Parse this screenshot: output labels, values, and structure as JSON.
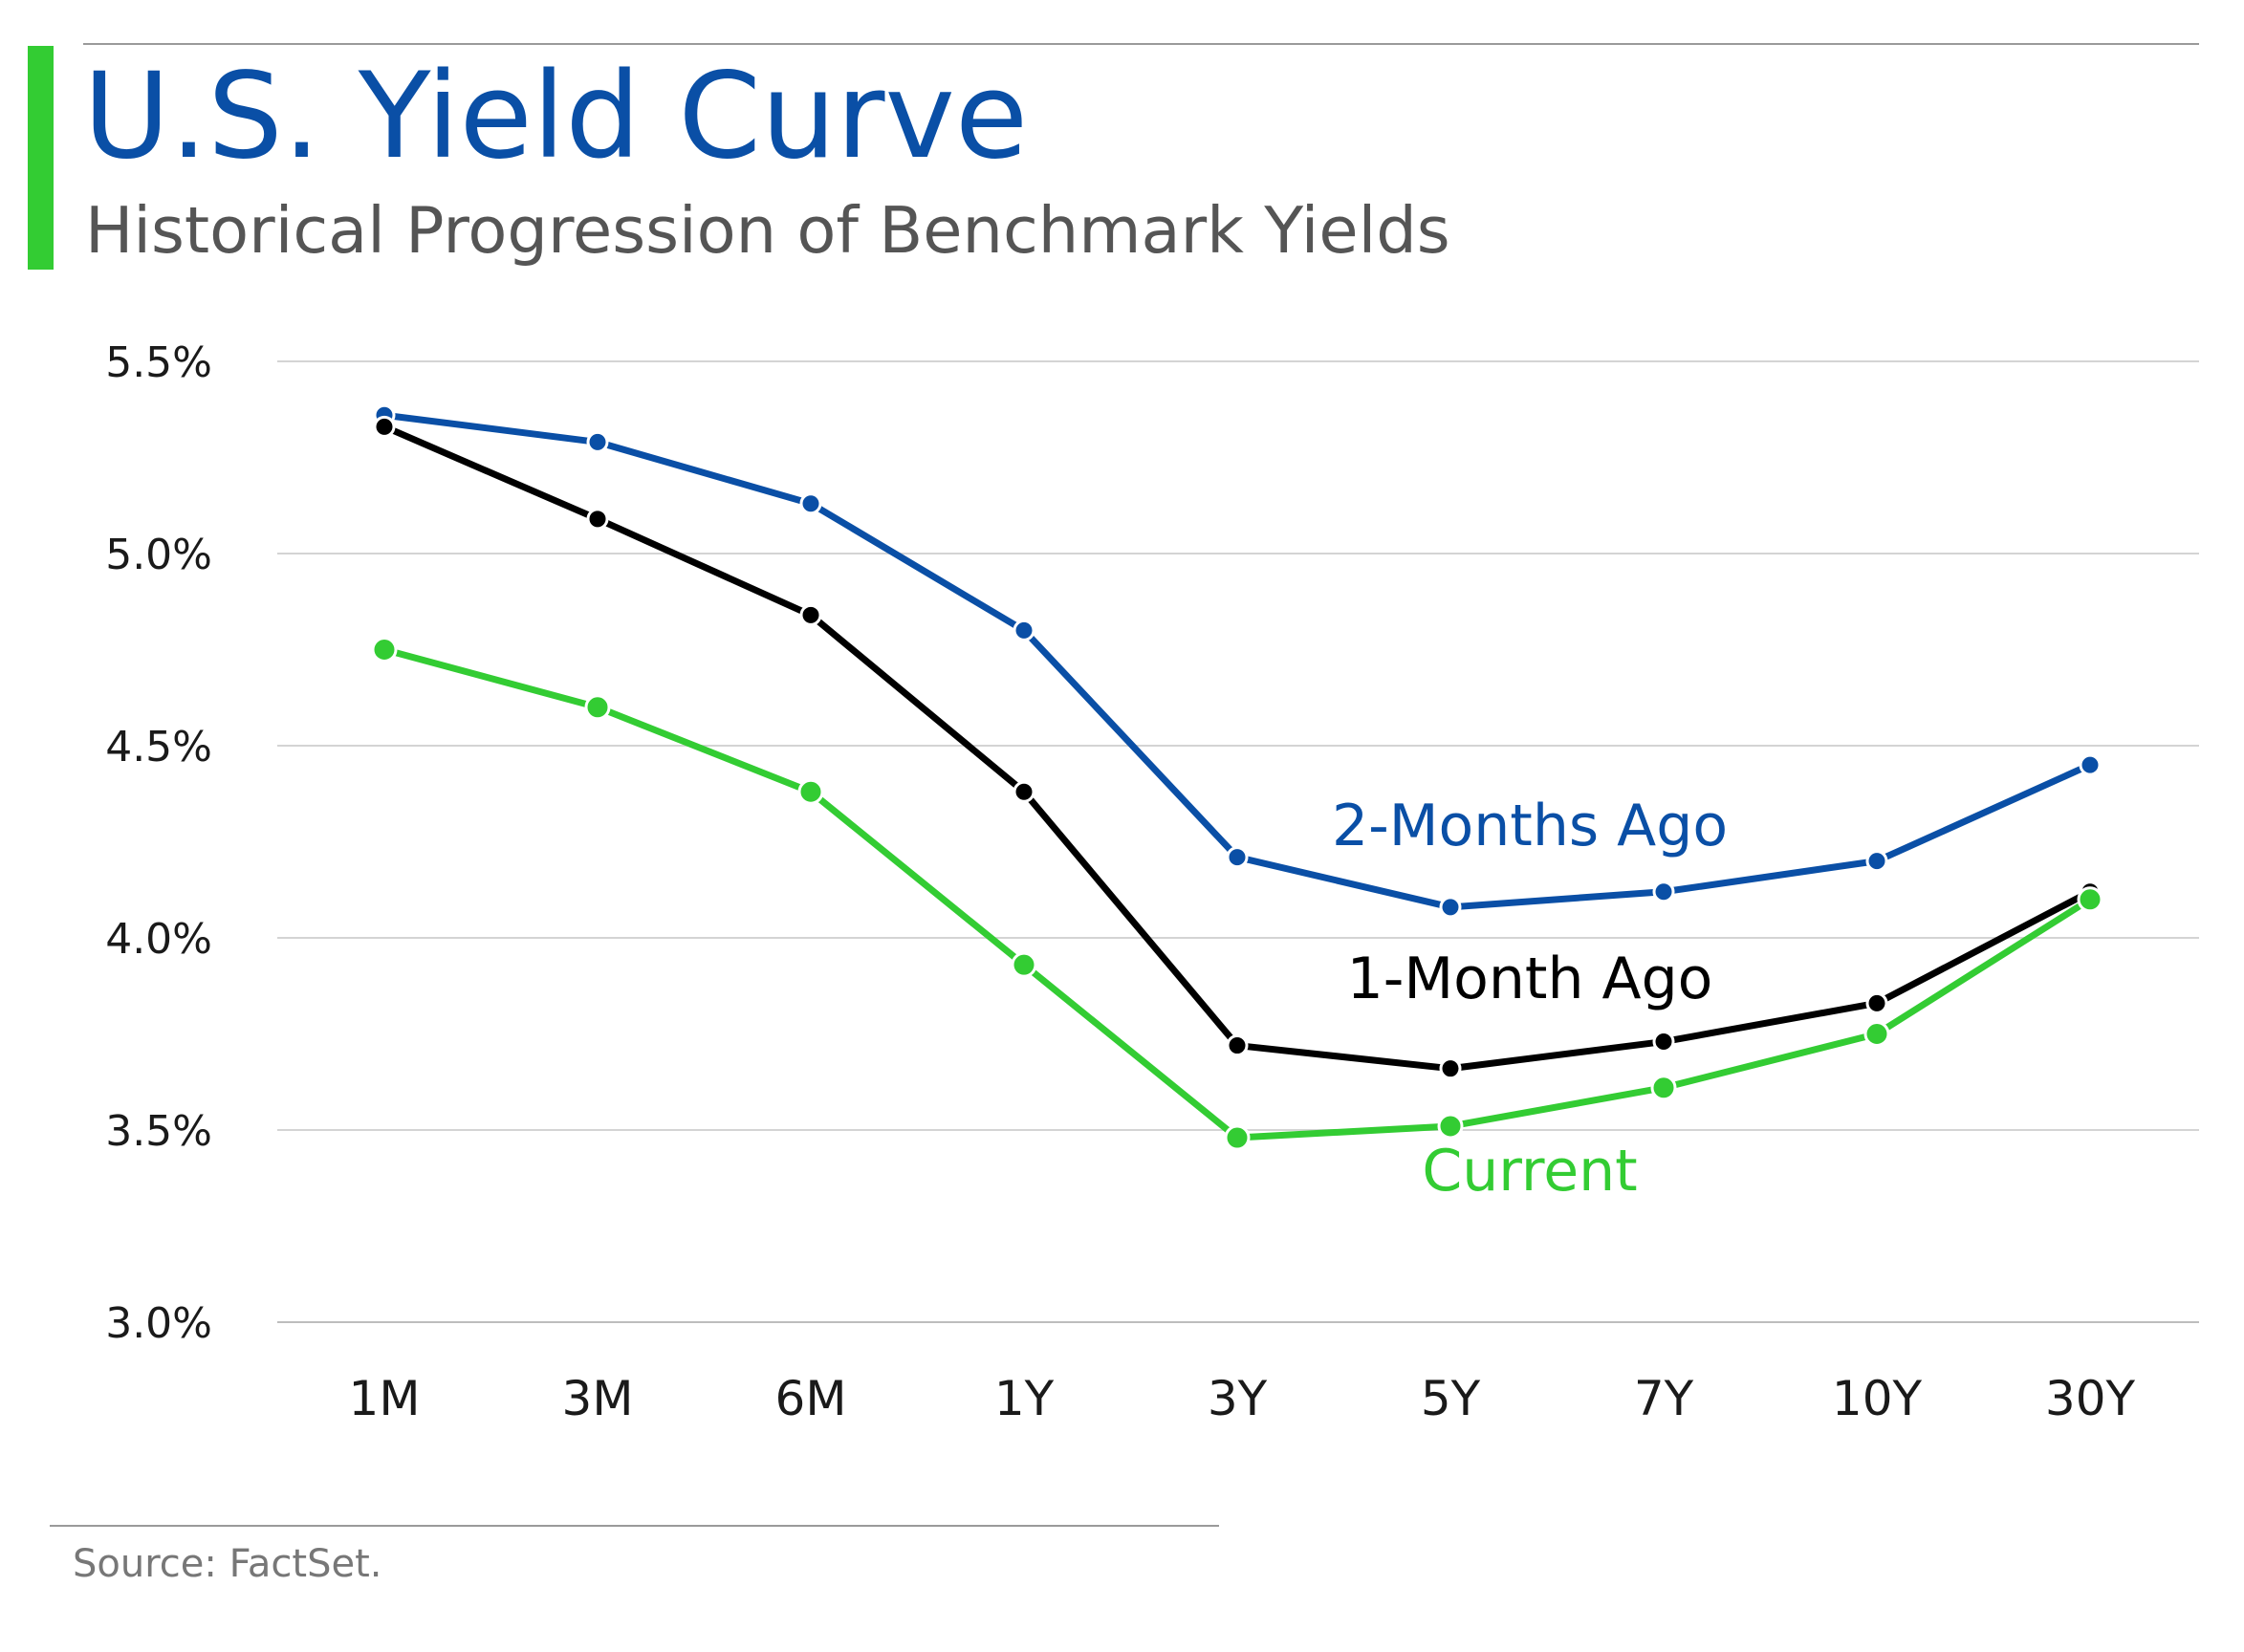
{
  "header": {
    "title": "U.S. Yield Curve",
    "subtitle": "Historical Progression of Benchmark Yields"
  },
  "footer": {
    "source": "Source: FactSet."
  },
  "colors": {
    "accent_bar": "#33cc33",
    "title": "#0a4fa6",
    "two_months": "#0a4fa6",
    "one_month": "#000000",
    "current": "#33cc33",
    "grid": "#d4d4d4"
  },
  "chart_data": {
    "type": "line",
    "title": "U.S. Yield Curve",
    "subtitle": "Historical Progression of Benchmark Yields",
    "xlabel": "",
    "ylabel": "",
    "categories": [
      "1M",
      "3M",
      "6M",
      "1Y",
      "3Y",
      "5Y",
      "7Y",
      "10Y",
      "30Y"
    ],
    "ylim": [
      3.0,
      5.5
    ],
    "yticks": [
      3.0,
      3.5,
      4.0,
      4.5,
      5.0,
      5.5
    ],
    "ytick_labels": [
      "3.0%",
      "3.5%",
      "4.0%",
      "4.5%",
      "5.0%",
      "5.5%"
    ],
    "grid": "horizontal",
    "legend": "inline labels",
    "series": [
      {
        "name": "2-Months Ago",
        "color": "#0a4fa6",
        "values": [
          5.36,
          5.29,
          5.13,
          4.8,
          4.21,
          4.08,
          4.12,
          4.2,
          4.45
        ]
      },
      {
        "name": "1-Month Ago",
        "color": "#000000",
        "values": [
          5.33,
          5.09,
          4.84,
          4.38,
          3.72,
          3.66,
          3.73,
          3.83,
          4.12
        ]
      },
      {
        "name": "Current",
        "color": "#33cc33",
        "values": [
          4.75,
          4.6,
          4.38,
          3.93,
          3.48,
          3.51,
          3.61,
          3.75,
          4.1
        ]
      }
    ]
  }
}
